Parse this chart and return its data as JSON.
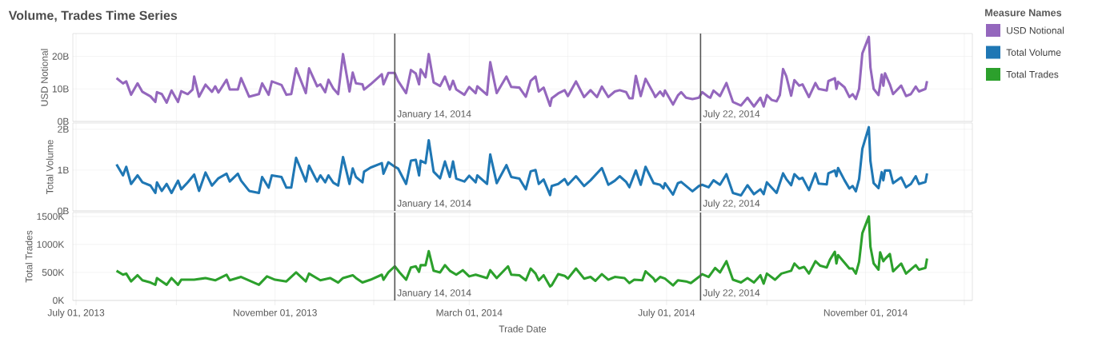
{
  "chart_data": [
    {
      "type": "line",
      "title": "Volume, Trades Time Series",
      "ylabel": "USD Notional",
      "legend_title": "Measure Names",
      "legend": "right",
      "grid": true,
      "tick_labels": "y",
      "xlim": [
        "2013-06-29",
        "2015-01-06"
      ],
      "xticks": [
        {
          "value": "2013-07-01",
          "label": null
        },
        {
          "value": "2013-09-01",
          "label": null
        },
        {
          "value": "2013-11-01",
          "label": null
        },
        {
          "value": "2014-01-01",
          "label": null
        },
        {
          "value": "2014-03-01",
          "label": null
        },
        {
          "value": "2014-05-01",
          "label": null
        },
        {
          "value": "2014-07-01",
          "label": null
        },
        {
          "value": "2014-09-01",
          "label": null
        },
        {
          "value": "2014-11-01",
          "label": null
        },
        {
          "value": "2015-01-01",
          "label": null
        }
      ],
      "ylim": [
        0,
        27
      ],
      "yticks": [
        {
          "value": 0,
          "label": "0B"
        },
        {
          "value": 10,
          "label": "10B"
        },
        {
          "value": 20,
          "label": "20B"
        }
      ],
      "ref_lines": [
        {
          "axis": "x",
          "value": "2014-01-14",
          "label": "January 14, 2014",
          "color": "#555555"
        },
        {
          "axis": "x",
          "value": "2014-07-22",
          "label": "July 22, 2014",
          "color": "#555555"
        }
      ],
      "x": [
        "2013-07-26",
        "2013-07-30",
        "2013-08-01",
        "2013-08-04",
        "2013-08-08",
        "2013-08-11",
        "2013-08-16",
        "2013-08-19",
        "2013-08-20",
        "2013-08-23",
        "2013-08-26",
        "2013-08-29",
        "2013-09-02",
        "2013-09-04",
        "2013-09-08",
        "2013-09-11",
        "2013-09-12",
        "2013-09-15",
        "2013-09-19",
        "2013-09-23",
        "2013-09-25",
        "2013-09-27",
        "2013-10-02",
        "2013-10-04",
        "2013-10-09",
        "2013-10-11",
        "2013-10-16",
        "2013-10-22",
        "2013-10-24",
        "2013-10-28",
        "2013-10-30",
        "2013-11-05",
        "2013-11-08",
        "2013-11-11",
        "2013-11-14",
        "2013-11-20",
        "2013-11-22",
        "2013-11-27",
        "2013-11-29",
        "2013-12-02",
        "2013-12-04",
        "2013-12-07",
        "2013-12-10",
        "2013-12-13",
        "2013-12-17",
        "2013-12-19",
        "2013-12-21",
        "2013-12-25",
        "2013-12-26",
        "2013-12-30",
        "2014-01-06",
        "2014-01-07",
        "2014-01-10",
        "2014-01-14",
        "2014-01-16",
        "2014-01-21",
        "2014-01-24",
        "2014-01-27",
        "2014-01-29",
        "2014-01-30",
        "2014-02-02",
        "2014-02-04",
        "2014-02-07",
        "2014-02-11",
        "2014-02-14",
        "2014-02-17",
        "2014-02-19",
        "2014-02-21",
        "2014-02-26",
        "2014-03-01",
        "2014-03-05",
        "2014-03-06",
        "2014-03-12",
        "2014-03-14",
        "2014-03-18",
        "2014-03-24",
        "2014-03-27",
        "2014-04-01",
        "2014-04-05",
        "2014-04-08",
        "2014-04-11",
        "2014-04-13",
        "2014-04-16",
        "2014-04-20",
        "2014-04-21",
        "2014-04-25",
        "2014-04-29",
        "2014-05-01",
        "2014-05-06",
        "2014-05-11",
        "2014-05-15",
        "2014-05-19",
        "2014-05-22",
        "2014-05-26",
        "2014-05-30",
        "2014-06-02",
        "2014-06-06",
        "2014-06-08",
        "2014-06-10",
        "2014-06-12",
        "2014-06-15",
        "2014-06-18",
        "2014-06-23",
        "2014-06-24",
        "2014-06-27",
        "2014-06-29",
        "2014-06-30",
        "2014-07-05",
        "2014-07-08",
        "2014-07-10",
        "2014-07-13",
        "2014-07-17",
        "2014-07-21",
        "2014-07-23",
        "2014-07-27",
        "2014-07-28",
        "2014-07-30",
        "2014-08-03",
        "2014-08-07",
        "2014-08-11",
        "2014-08-16",
        "2014-08-20",
        "2014-08-24",
        "2014-08-28",
        "2014-08-30",
        "2014-09-01",
        "2014-09-04",
        "2014-09-07",
        "2014-09-09",
        "2014-09-11",
        "2014-09-13",
        "2014-09-16",
        "2014-09-18",
        "2014-09-21",
        "2014-09-23",
        "2014-09-27",
        "2014-10-01",
        "2014-10-03",
        "2014-10-08",
        "2014-10-09",
        "2014-10-13",
        "2014-10-14",
        "2014-10-15",
        "2014-10-19",
        "2014-10-22",
        "2014-10-24",
        "2014-10-26",
        "2014-10-28",
        "2014-10-30",
        "2014-11-03",
        "2014-11-04",
        "2014-11-06",
        "2014-11-09",
        "2014-11-11",
        "2014-11-12",
        "2014-11-13",
        "2014-11-16",
        "2014-11-18",
        "2014-11-23",
        "2014-11-26",
        "2014-11-29",
        "2014-12-02",
        "2014-12-04",
        "2014-12-08",
        "2014-12-09"
      ],
      "series": [
        {
          "name": "USD Notional",
          "color": "#9467bd",
          "values": [
            13.3,
            11.7,
            12.3,
            8.2,
            11.7,
            9.1,
            7.7,
            6.0,
            9.0,
            8.4,
            5.8,
            9.5,
            6.0,
            9.3,
            8.4,
            9.8,
            13.8,
            7.6,
            11.3,
            9.1,
            10.8,
            8.9,
            12.8,
            9.8,
            9.8,
            13.3,
            7.6,
            8.4,
            11.7,
            8.2,
            12.3,
            11.2,
            8.2,
            8.4,
            16.3,
            8.7,
            16.3,
            10.8,
            11.4,
            9.0,
            12.8,
            10.1,
            8.4,
            20.7,
            9.2,
            15.0,
            11.7,
            11.4,
            9.8,
            11.4,
            14.5,
            11.4,
            14.9,
            14.9,
            12.5,
            8.7,
            15.8,
            14.7,
            11.4,
            16.0,
            13.6,
            20.7,
            12.0,
            10.9,
            13.8,
            9.8,
            12.5,
            9.8,
            8.2,
            10.6,
            8.7,
            10.8,
            8.2,
            18.2,
            8.7,
            13.8,
            10.6,
            10.4,
            7.6,
            12.5,
            13.8,
            9.2,
            10.4,
            4.8,
            7.1,
            8.6,
            9.6,
            7.8,
            12.3,
            7.5,
            9.6,
            7.5,
            10.7,
            7.5,
            9.2,
            9.6,
            9.0,
            7.1,
            7.1,
            14.0,
            7.8,
            13.1,
            8.6,
            7.5,
            9.2,
            7.8,
            9.5,
            5.2,
            8.0,
            9.0,
            7.3,
            6.9,
            7.3,
            9.0,
            7.5,
            7.3,
            9.5,
            7.8,
            11.8,
            6.0,
            4.9,
            7.3,
            4.6,
            7.3,
            4.6,
            8.1,
            6.6,
            6.2,
            8.1,
            16.1,
            13.9,
            7.9,
            12.7,
            11.0,
            11.4,
            7.5,
            11.8,
            10.0,
            9.5,
            12.4,
            13.3,
            10.0,
            12.2,
            10.5,
            7.5,
            8.4,
            6.9,
            10.0,
            20.9,
            26.0,
            16.6,
            10.0,
            8.1,
            14.4,
            11.0,
            14.8,
            11.4,
            8.4,
            11.0,
            7.8,
            8.4,
            10.7,
            9.2,
            10.0,
            12.4
          ]
        }
      ]
    },
    {
      "type": "line",
      "ylabel": "Total Volume",
      "legend": "right",
      "grid": true,
      "tick_labels": "y",
      "xlim": [
        "2013-06-29",
        "2015-01-06"
      ],
      "xticks": [
        {
          "value": "2013-07-01",
          "label": null
        },
        {
          "value": "2013-09-01",
          "label": null
        },
        {
          "value": "2013-11-01",
          "label": null
        },
        {
          "value": "2014-01-01",
          "label": null
        },
        {
          "value": "2014-03-01",
          "label": null
        },
        {
          "value": "2014-05-01",
          "label": null
        },
        {
          "value": "2014-07-01",
          "label": null
        },
        {
          "value": "2014-09-01",
          "label": null
        },
        {
          "value": "2014-11-01",
          "label": null
        },
        {
          "value": "2015-01-01",
          "label": null
        }
      ],
      "ylim": [
        0,
        2.15
      ],
      "yticks": [
        {
          "value": 0,
          "label": "0B"
        },
        {
          "value": 1,
          "label": "1B"
        },
        {
          "value": 2,
          "label": "2B"
        }
      ],
      "ref_lines": [
        {
          "axis": "x",
          "value": "2014-01-14",
          "label": "January 14, 2014",
          "color": "#555555"
        },
        {
          "axis": "x",
          "value": "2014-07-22",
          "label": "July 22, 2014",
          "color": "#555555"
        }
      ],
      "x": [
        "2013-07-26",
        "2013-07-30",
        "2013-08-01",
        "2013-08-04",
        "2013-08-08",
        "2013-08-11",
        "2013-08-16",
        "2013-08-19",
        "2013-08-20",
        "2013-08-23",
        "2013-08-26",
        "2013-08-29",
        "2013-09-02",
        "2013-09-04",
        "2013-09-08",
        "2013-09-12",
        "2013-09-15",
        "2013-09-19",
        "2013-09-23",
        "2013-09-27",
        "2013-10-02",
        "2013-10-04",
        "2013-10-09",
        "2013-10-11",
        "2013-10-16",
        "2013-10-22",
        "2013-10-24",
        "2013-10-28",
        "2013-10-30",
        "2013-11-05",
        "2013-11-08",
        "2013-11-11",
        "2013-11-14",
        "2013-11-20",
        "2013-11-22",
        "2013-11-27",
        "2013-11-29",
        "2013-12-02",
        "2013-12-04",
        "2013-12-07",
        "2013-12-10",
        "2013-12-13",
        "2013-12-17",
        "2013-12-19",
        "2013-12-21",
        "2013-12-25",
        "2013-12-26",
        "2013-12-30",
        "2014-01-06",
        "2014-01-07",
        "2014-01-10",
        "2014-01-14",
        "2014-01-16",
        "2014-01-21",
        "2014-01-24",
        "2014-01-27",
        "2014-01-29",
        "2014-01-30",
        "2014-02-02",
        "2014-02-04",
        "2014-02-07",
        "2014-02-11",
        "2014-02-14",
        "2014-02-17",
        "2014-02-19",
        "2014-02-21",
        "2014-02-26",
        "2014-03-01",
        "2014-03-05",
        "2014-03-06",
        "2014-03-12",
        "2014-03-14",
        "2014-03-18",
        "2014-03-24",
        "2014-03-27",
        "2014-04-01",
        "2014-04-05",
        "2014-04-08",
        "2014-04-11",
        "2014-04-13",
        "2014-04-16",
        "2014-04-20",
        "2014-04-21",
        "2014-04-25",
        "2014-04-29",
        "2014-05-01",
        "2014-05-06",
        "2014-05-11",
        "2014-05-15",
        "2014-05-22",
        "2014-05-26",
        "2014-05-30",
        "2014-06-02",
        "2014-06-06",
        "2014-06-08",
        "2014-06-12",
        "2014-06-15",
        "2014-06-18",
        "2014-06-23",
        "2014-06-27",
        "2014-06-29",
        "2014-06-30",
        "2014-07-05",
        "2014-07-08",
        "2014-07-10",
        "2014-07-17",
        "2014-07-21",
        "2014-07-23",
        "2014-07-27",
        "2014-07-30",
        "2014-08-03",
        "2014-08-07",
        "2014-08-11",
        "2014-08-16",
        "2014-08-20",
        "2014-08-24",
        "2014-08-28",
        "2014-08-30",
        "2014-09-01",
        "2014-09-07",
        "2014-09-11",
        "2014-09-13",
        "2014-09-16",
        "2014-09-18",
        "2014-09-21",
        "2014-09-23",
        "2014-09-27",
        "2014-10-01",
        "2014-10-03",
        "2014-10-08",
        "2014-10-09",
        "2014-10-13",
        "2014-10-14",
        "2014-10-15",
        "2014-10-19",
        "2014-10-22",
        "2014-10-24",
        "2014-10-26",
        "2014-10-28",
        "2014-10-30",
        "2014-11-03",
        "2014-11-04",
        "2014-11-06",
        "2014-11-09",
        "2014-11-11",
        "2014-11-12",
        "2014-11-13",
        "2014-11-16",
        "2014-11-18",
        "2014-11-23",
        "2014-11-26",
        "2014-11-29",
        "2014-12-02",
        "2014-12-04",
        "2014-12-08",
        "2014-12-09"
      ],
      "series": [
        {
          "name": "Total Volume",
          "color": "#1f77b4",
          "values": [
            1.14,
            0.87,
            1.08,
            0.66,
            0.87,
            0.7,
            0.62,
            0.44,
            0.7,
            0.49,
            0.66,
            0.44,
            0.74,
            0.53,
            0.7,
            0.89,
            0.49,
            0.94,
            0.62,
            0.8,
            0.91,
            0.72,
            0.91,
            0.74,
            0.49,
            0.44,
            0.83,
            0.57,
            0.87,
            0.83,
            0.57,
            0.57,
            1.3,
            0.72,
            1.11,
            0.72,
            0.87,
            0.7,
            0.87,
            0.69,
            0.62,
            1.32,
            0.66,
            1.04,
            0.83,
            0.7,
            0.96,
            1.06,
            1.17,
            0.91,
            1.19,
            1.08,
            1.04,
            0.66,
            1.23,
            1.25,
            0.87,
            1.23,
            1.17,
            1.73,
            0.96,
            0.8,
            1.21,
            0.83,
            1.21,
            0.79,
            0.72,
            0.86,
            0.7,
            0.87,
            0.66,
            1.38,
            0.68,
            1.12,
            0.83,
            0.79,
            0.53,
            0.97,
            1.0,
            0.66,
            0.77,
            0.39,
            0.61,
            0.66,
            0.78,
            0.64,
            0.85,
            0.61,
            0.75,
            1.05,
            0.64,
            0.74,
            0.85,
            0.71,
            0.58,
            0.99,
            0.64,
            1.08,
            0.68,
            0.64,
            0.55,
            0.68,
            0.4,
            0.68,
            0.71,
            0.48,
            0.61,
            0.64,
            0.58,
            0.75,
            0.64,
            0.9,
            0.44,
            0.38,
            0.63,
            0.41,
            0.53,
            0.41,
            0.7,
            0.44,
            0.92,
            0.78,
            0.63,
            0.9,
            0.78,
            0.81,
            0.51,
            0.92,
            0.67,
            0.65,
            0.92,
            0.99,
            0.85,
            1.05,
            0.75,
            0.55,
            0.61,
            0.48,
            0.78,
            1.52,
            2.05,
            1.22,
            0.68,
            0.56,
            0.95,
            0.75,
            0.99,
            0.99,
            0.68,
            0.82,
            0.58,
            0.66,
            0.85,
            0.66,
            0.71,
            0.92
          ]
        }
      ]
    },
    {
      "type": "line",
      "xlabel": "Trade Date",
      "ylabel": "Total Trades",
      "legend": "right",
      "grid": true,
      "xlim": [
        "2013-06-29",
        "2015-01-06"
      ],
      "xticks": [
        {
          "value": "2013-07-01",
          "label": "July 01, 2013"
        },
        {
          "value": "2013-09-01",
          "label": null
        },
        {
          "value": "2013-11-01",
          "label": "November 01, 2013"
        },
        {
          "value": "2014-01-01",
          "label": null
        },
        {
          "value": "2014-03-01",
          "label": "March 01, 2014"
        },
        {
          "value": "2014-05-01",
          "label": null
        },
        {
          "value": "2014-07-01",
          "label": "July 01, 2014"
        },
        {
          "value": "2014-09-01",
          "label": null
        },
        {
          "value": "2014-11-01",
          "label": "November 01, 2014"
        },
        {
          "value": "2015-01-01",
          "label": null
        }
      ],
      "ylim": [
        0,
        1570
      ],
      "yticks": [
        {
          "value": 0,
          "label": "0K"
        },
        {
          "value": 500,
          "label": "500K"
        },
        {
          "value": 1000,
          "label": "1000K"
        },
        {
          "value": 1500,
          "label": "1500K"
        }
      ],
      "ref_lines": [
        {
          "axis": "x",
          "value": "2014-01-14",
          "label": "January 14, 2014",
          "color": "#555555"
        },
        {
          "axis": "x",
          "value": "2014-07-22",
          "label": "July 22, 2014",
          "color": "#555555"
        }
      ],
      "x": [
        "2013-07-26",
        "2013-07-30",
        "2013-08-01",
        "2013-08-04",
        "2013-08-08",
        "2013-08-11",
        "2013-08-16",
        "2013-08-19",
        "2013-08-20",
        "2013-08-23",
        "2013-08-26",
        "2013-08-29",
        "2013-09-02",
        "2013-09-04",
        "2013-09-12",
        "2013-09-19",
        "2013-09-25",
        "2013-10-02",
        "2013-10-04",
        "2013-10-11",
        "2013-10-22",
        "2013-10-27",
        "2013-11-01",
        "2013-11-08",
        "2013-11-14",
        "2013-11-20",
        "2013-11-22",
        "2013-11-29",
        "2013-12-05",
        "2013-12-10",
        "2013-12-13",
        "2013-12-19",
        "2013-12-21",
        "2013-12-25",
        "2013-12-30",
        "2014-01-06",
        "2014-01-07",
        "2014-01-10",
        "2014-01-14",
        "2014-01-17",
        "2014-01-21",
        "2014-01-24",
        "2014-01-27",
        "2014-01-29",
        "2014-01-30",
        "2014-02-02",
        "2014-02-04",
        "2014-02-07",
        "2014-02-11",
        "2014-02-14",
        "2014-02-17",
        "2014-02-21",
        "2014-02-25",
        "2014-03-01",
        "2014-03-05",
        "2014-03-12",
        "2014-03-14",
        "2014-03-18",
        "2014-03-25",
        "2014-03-27",
        "2014-04-01",
        "2014-04-05",
        "2014-04-08",
        "2014-04-11",
        "2014-04-13",
        "2014-04-16",
        "2014-04-20",
        "2014-04-21",
        "2014-04-25",
        "2014-04-29",
        "2014-05-01",
        "2014-05-06",
        "2014-05-11",
        "2014-05-15",
        "2014-05-18",
        "2014-05-22",
        "2014-05-26",
        "2014-05-30",
        "2014-06-05",
        "2014-06-08",
        "2014-06-11",
        "2014-06-16",
        "2014-06-18",
        "2014-06-23",
        "2014-06-24",
        "2014-06-27",
        "2014-06-30",
        "2014-07-05",
        "2014-07-08",
        "2014-07-13",
        "2014-07-16",
        "2014-07-21",
        "2014-07-23",
        "2014-07-27",
        "2014-07-31",
        "2014-08-03",
        "2014-08-07",
        "2014-08-11",
        "2014-08-16",
        "2014-08-20",
        "2014-08-24",
        "2014-08-28",
        "2014-08-30",
        "2014-09-01",
        "2014-09-06",
        "2014-09-10",
        "2014-09-16",
        "2014-09-18",
        "2014-09-21",
        "2014-09-24",
        "2014-09-27",
        "2014-10-01",
        "2014-10-04",
        "2014-10-08",
        "2014-10-10",
        "2014-10-13",
        "2014-10-14",
        "2014-10-15",
        "2014-10-22",
        "2014-10-24",
        "2014-10-26",
        "2014-10-28",
        "2014-10-30",
        "2014-11-03",
        "2014-11-04",
        "2014-11-06",
        "2014-11-09",
        "2014-11-10",
        "2014-11-12",
        "2014-11-13",
        "2014-11-16",
        "2014-11-18",
        "2014-11-23",
        "2014-11-26",
        "2014-12-02",
        "2014-12-04",
        "2014-12-08",
        "2014-12-09"
      ],
      "series": [
        {
          "name": "Total Trades",
          "color": "#2ca02c",
          "values": [
            530,
            460,
            480,
            340,
            450,
            360,
            320,
            280,
            400,
            340,
            280,
            400,
            280,
            370,
            370,
            400,
            360,
            460,
            360,
            420,
            280,
            430,
            370,
            340,
            500,
            340,
            480,
            360,
            400,
            320,
            400,
            450,
            400,
            320,
            370,
            460,
            370,
            500,
            610,
            500,
            370,
            590,
            610,
            510,
            630,
            630,
            880,
            530,
            500,
            630,
            530,
            460,
            540,
            430,
            460,
            400,
            540,
            400,
            610,
            460,
            450,
            360,
            570,
            480,
            360,
            450,
            250,
            270,
            470,
            440,
            390,
            570,
            390,
            420,
            350,
            470,
            370,
            420,
            400,
            310,
            370,
            360,
            520,
            390,
            340,
            420,
            390,
            270,
            360,
            340,
            310,
            420,
            470,
            420,
            580,
            500,
            700,
            370,
            320,
            400,
            320,
            450,
            300,
            480,
            370,
            480,
            530,
            660,
            570,
            600,
            480,
            700,
            620,
            590,
            730,
            870,
            660,
            810,
            570,
            570,
            480,
            690,
            1200,
            1500,
            960,
            660,
            550,
            860,
            700,
            740,
            830,
            520,
            660,
            480,
            630,
            550,
            580,
            750
          ]
        }
      ]
    }
  ]
}
